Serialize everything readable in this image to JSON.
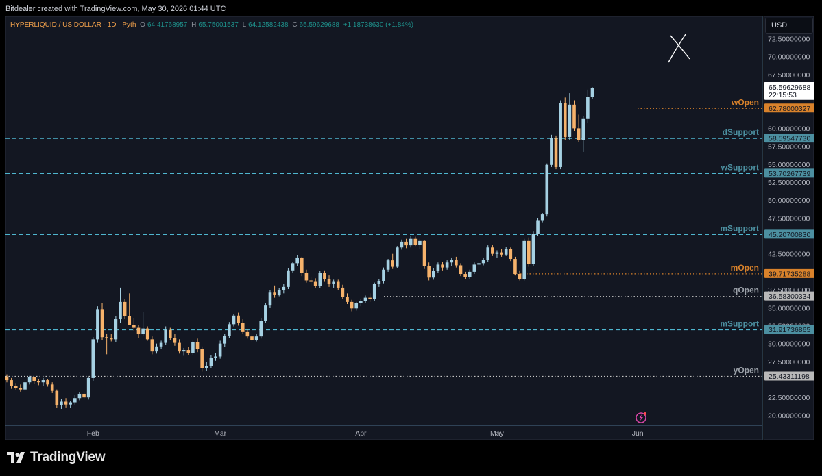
{
  "header": {
    "credit": "Bitdealer created with TradingView.com, May 30, 2026 01:44 UTC"
  },
  "legend": {
    "symbol": "HYPERLIQUID / US DOLLAR · 1D · Pyth",
    "o_label": "O",
    "o": "64.41768957",
    "h_label": "H",
    "h": "65.75001537",
    "l_label": "L",
    "l": "64.12582438",
    "c_label": "C",
    "c": "65.59629688",
    "change": "+1.18738630 (+1.84%)"
  },
  "currency": "USD",
  "footer": {
    "brand": "TradingView"
  },
  "colors": {
    "up": "#a6d1e3",
    "down": "#f6b26b",
    "support": "#4fb6cf",
    "open_orange": "#d9822b",
    "background": "#131722",
    "support_label": "#4c8fa0",
    "price_label_white": "#ffffff"
  },
  "chart_data": {
    "type": "candlestick",
    "y_axis": {
      "ylim": [
        18.7,
        75.6
      ],
      "ticks": [
        "20.00000000",
        "22.50000000",
        "27.50000000",
        "30.00000000",
        "32.50000000",
        "35.00000000",
        "37.50000000",
        "42.50000000",
        "47.50000000",
        "50.00000000",
        "52.50000000",
        "55.00000000",
        "57.50000000",
        "60.00000000",
        "67.50000000",
        "70.00000000",
        "72.50000000"
      ]
    },
    "x_axis": {
      "labels": [
        "Feb",
        "Mar",
        "Apr",
        "May",
        "Jun"
      ],
      "days_before_first_label": 19
    },
    "levels": [
      {
        "name": "wOpen",
        "price": "62.78000327",
        "value": 62.78,
        "style": "dotted",
        "color": "orange"
      },
      {
        "name": "dSupport",
        "price": "58.59547730",
        "value": 58.595,
        "style": "dashed",
        "color": "blue"
      },
      {
        "name": "wSupport",
        "price": "53.70267739",
        "value": 53.703,
        "style": "dashed",
        "color": "blue"
      },
      {
        "name": "mSupport",
        "price": "45.20700830",
        "value": 45.207,
        "style": "dashed",
        "color": "blue"
      },
      {
        "name": "mOpen",
        "price": "39.71735288",
        "value": 39.717,
        "style": "dotted",
        "color": "orange"
      },
      {
        "name": "qOpen",
        "price": "36.58300334",
        "value": 36.583,
        "style": "dotted",
        "color": "gray"
      },
      {
        "name": "mSupport",
        "price": "31.91736865",
        "value": 31.917,
        "style": "dashed",
        "color": "blue"
      },
      {
        "name": "yOpen",
        "price": "25.43311198",
        "value": 25.433,
        "style": "dotted",
        "color": "gray"
      }
    ],
    "current": {
      "price": "65.59629688",
      "countdown": "22:15:53",
      "value": 65.596
    },
    "ohlc": [
      [
        25.4,
        25.7,
        24.6,
        24.9
      ],
      [
        24.9,
        25.2,
        23.7,
        24.1
      ],
      [
        24.1,
        24.5,
        23.5,
        23.8
      ],
      [
        23.8,
        24.3,
        23.3,
        23.6
      ],
      [
        23.6,
        24.9,
        23.4,
        24.6
      ],
      [
        24.6,
        25.5,
        24.3,
        25.3
      ],
      [
        25.3,
        25.4,
        24.4,
        24.8
      ],
      [
        24.8,
        25.1,
        24.2,
        24.6
      ],
      [
        24.6,
        25.2,
        24.1,
        24.9
      ],
      [
        24.9,
        25.0,
        24.0,
        24.3
      ],
      [
        24.3,
        24.6,
        23.1,
        23.4
      ],
      [
        23.4,
        23.6,
        21.0,
        21.4
      ],
      [
        21.4,
        22.3,
        20.9,
        21.9
      ],
      [
        21.9,
        22.4,
        21.1,
        21.5
      ],
      [
        21.5,
        22.0,
        21.0,
        21.8
      ],
      [
        21.8,
        22.8,
        21.5,
        22.4
      ],
      [
        22.4,
        23.2,
        22.1,
        23.0
      ],
      [
        23.0,
        23.3,
        22.2,
        22.5
      ],
      [
        22.5,
        25.4,
        22.2,
        25.2
      ],
      [
        25.2,
        30.9,
        24.8,
        30.6
      ],
      [
        30.6,
        35.2,
        30.1,
        34.8
      ],
      [
        34.8,
        35.6,
        30.5,
        30.9
      ],
      [
        30.9,
        31.4,
        28.5,
        30.8
      ],
      [
        30.8,
        31.3,
        30.3,
        30.6
      ],
      [
        30.6,
        33.8,
        30.2,
        33.4
      ],
      [
        33.4,
        37.8,
        32.9,
        35.8
      ],
      [
        35.8,
        36.2,
        33.4,
        33.8
      ],
      [
        33.8,
        37.0,
        32.8,
        32.6
      ],
      [
        32.6,
        33.5,
        31.7,
        32.2
      ],
      [
        32.2,
        32.6,
        30.8,
        31.3
      ],
      [
        31.3,
        34.4,
        31.0,
        32.1
      ],
      [
        32.1,
        32.4,
        30.4,
        30.6
      ],
      [
        30.6,
        31.0,
        28.5,
        28.9
      ],
      [
        28.9,
        30.0,
        28.6,
        29.6
      ],
      [
        29.6,
        30.4,
        29.2,
        30.1
      ],
      [
        30.1,
        32.4,
        29.8,
        31.9
      ],
      [
        31.9,
        32.2,
        30.5,
        30.8
      ],
      [
        30.8,
        31.3,
        29.7,
        30.1
      ],
      [
        30.1,
        30.6,
        28.6,
        28.9
      ],
      [
        28.9,
        29.4,
        28.3,
        29.1
      ],
      [
        29.1,
        29.5,
        28.4,
        28.7
      ],
      [
        28.7,
        30.4,
        28.4,
        30.2
      ],
      [
        30.2,
        30.7,
        28.8,
        29.2
      ],
      [
        29.2,
        29.6,
        26.1,
        26.6
      ],
      [
        26.6,
        27.4,
        26.2,
        26.9
      ],
      [
        26.9,
        28.4,
        26.6,
        28.0
      ],
      [
        28.0,
        28.7,
        27.6,
        28.2
      ],
      [
        28.2,
        30.4,
        27.9,
        30.0
      ],
      [
        30.0,
        31.3,
        29.5,
        31.1
      ],
      [
        31.1,
        33.0,
        30.8,
        32.7
      ],
      [
        32.7,
        34.1,
        32.4,
        33.9
      ],
      [
        33.9,
        34.3,
        32.5,
        32.9
      ],
      [
        32.9,
        33.4,
        31.3,
        31.6
      ],
      [
        31.6,
        32.0,
        30.7,
        31.0
      ],
      [
        31.0,
        31.4,
        30.2,
        30.5
      ],
      [
        30.5,
        31.3,
        30.3,
        31.0
      ],
      [
        31.0,
        33.5,
        30.7,
        33.2
      ],
      [
        33.2,
        35.6,
        32.9,
        35.3
      ],
      [
        35.3,
        37.5,
        35.0,
        37.1
      ],
      [
        37.1,
        38.1,
        36.4,
        36.8
      ],
      [
        36.8,
        37.7,
        36.6,
        37.5
      ],
      [
        37.5,
        38.3,
        37.0,
        37.9
      ],
      [
        37.9,
        40.5,
        37.6,
        40.2
      ],
      [
        40.2,
        41.4,
        39.8,
        41.2
      ],
      [
        41.2,
        42.3,
        40.8,
        42.0
      ],
      [
        42.0,
        42.1,
        39.4,
        39.8
      ],
      [
        39.8,
        40.3,
        38.5,
        38.8
      ],
      [
        38.8,
        39.3,
        38.1,
        38.6
      ],
      [
        38.6,
        39.1,
        37.7,
        38.0
      ],
      [
        38.0,
        40.1,
        37.7,
        39.8
      ],
      [
        39.8,
        40.2,
        38.6,
        39.0
      ],
      [
        39.0,
        39.5,
        37.9,
        38.3
      ],
      [
        38.3,
        38.9,
        37.8,
        38.6
      ],
      [
        38.6,
        38.9,
        37.5,
        37.8
      ],
      [
        37.8,
        38.2,
        36.2,
        36.5
      ],
      [
        36.5,
        37.0,
        35.5,
        35.8
      ],
      [
        35.8,
        36.1,
        34.5,
        34.9
      ],
      [
        34.9,
        35.8,
        34.6,
        35.6
      ],
      [
        35.6,
        36.2,
        35.2,
        35.9
      ],
      [
        35.9,
        36.7,
        35.6,
        36.4
      ],
      [
        36.4,
        37.0,
        35.8,
        36.2
      ],
      [
        36.2,
        38.5,
        35.9,
        38.3
      ],
      [
        38.3,
        39.0,
        37.9,
        38.7
      ],
      [
        38.7,
        40.6,
        38.4,
        40.3
      ],
      [
        40.3,
        41.8,
        40.0,
        41.6
      ],
      [
        41.6,
        42.5,
        40.4,
        40.7
      ],
      [
        40.7,
        43.6,
        40.5,
        43.4
      ],
      [
        43.4,
        44.5,
        43.1,
        44.2
      ],
      [
        44.2,
        44.6,
        43.3,
        43.7
      ],
      [
        43.7,
        45.0,
        43.4,
        44.6
      ],
      [
        44.6,
        44.9,
        43.6,
        43.8
      ],
      [
        43.8,
        44.6,
        43.2,
        44.3
      ],
      [
        44.3,
        44.4,
        40.4,
        40.8
      ],
      [
        40.8,
        41.3,
        38.8,
        39.2
      ],
      [
        39.2,
        40.5,
        38.9,
        40.1
      ],
      [
        40.1,
        41.3,
        39.8,
        41.0
      ],
      [
        41.0,
        41.4,
        40.2,
        40.6
      ],
      [
        40.6,
        41.6,
        40.3,
        41.3
      ],
      [
        41.3,
        42.0,
        40.8,
        41.7
      ],
      [
        41.7,
        42.1,
        40.6,
        40.9
      ],
      [
        40.9,
        41.2,
        39.4,
        39.7
      ],
      [
        39.7,
        40.0,
        39.0,
        39.3
      ],
      [
        39.3,
        40.3,
        39.0,
        40.0
      ],
      [
        40.0,
        41.3,
        39.7,
        41.0
      ],
      [
        41.0,
        41.5,
        40.6,
        41.2
      ],
      [
        41.2,
        42.0,
        40.9,
        41.7
      ],
      [
        41.7,
        43.7,
        41.4,
        43.4
      ],
      [
        43.4,
        43.8,
        42.2,
        42.5
      ],
      [
        42.5,
        43.0,
        42.0,
        42.7
      ],
      [
        42.7,
        43.2,
        42.1,
        42.4
      ],
      [
        42.4,
        43.5,
        42.2,
        43.2
      ],
      [
        43.2,
        43.4,
        41.5,
        41.8
      ],
      [
        41.8,
        42.1,
        39.5,
        39.7
      ],
      [
        39.7,
        40.2,
        38.8,
        39.0
      ],
      [
        39.0,
        44.6,
        38.8,
        44.3
      ],
      [
        44.3,
        44.8,
        40.7,
        41.1
      ],
      [
        41.1,
        45.6,
        40.8,
        45.3
      ],
      [
        45.3,
        47.5,
        45.0,
        47.2
      ],
      [
        47.2,
        48.2,
        46.9,
        48.0
      ],
      [
        48.0,
        55.1,
        47.7,
        54.9
      ],
      [
        54.9,
        59.1,
        54.6,
        58.7
      ],
      [
        58.7,
        59.0,
        54.3,
        54.6
      ],
      [
        54.6,
        63.9,
        54.3,
        63.5
      ],
      [
        63.5,
        64.3,
        58.4,
        58.8
      ],
      [
        58.8,
        64.9,
        58.4,
        63.3
      ],
      [
        63.3,
        63.9,
        59.6,
        60.0
      ],
      [
        60.0,
        61.9,
        58.1,
        58.4
      ],
      [
        58.4,
        61.7,
        56.7,
        61.3
      ],
      [
        61.3,
        65.4,
        60.8,
        64.4
      ],
      [
        64.4,
        65.75,
        64.1,
        65.6
      ]
    ]
  }
}
